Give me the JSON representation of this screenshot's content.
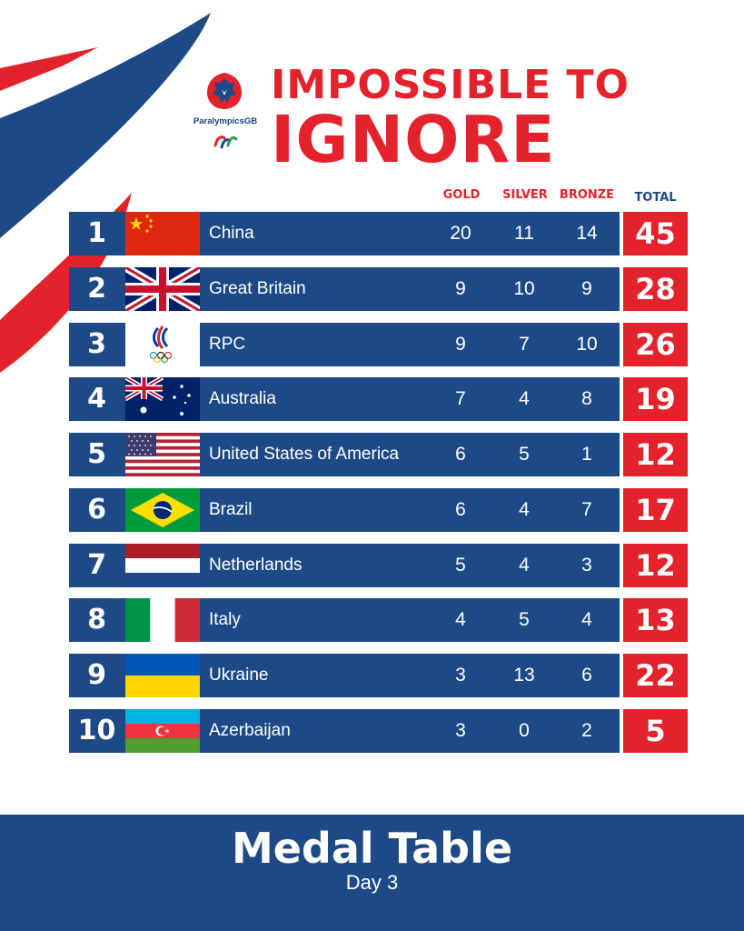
{
  "brand": {
    "logo_text_a": "Paralympics",
    "logo_text_b": "GB"
  },
  "headline": {
    "line1": "IMPOSSIBLE TO",
    "line2": "IGNORE"
  },
  "columns": {
    "gold": "GOLD",
    "silver": "SILVER",
    "bronze": "BRONZE",
    "total": "TOTAL"
  },
  "rows": [
    {
      "rank": "1",
      "country": "China",
      "flag": "china-flag-icon",
      "gold": "20",
      "silver": "11",
      "bronze": "14",
      "total": "45"
    },
    {
      "rank": "2",
      "country": "Great Britain",
      "flag": "great-britain-flag-icon",
      "gold": "9",
      "silver": "10",
      "bronze": "9",
      "total": "28"
    },
    {
      "rank": "3",
      "country": "RPC",
      "flag": "rpc-flag-icon",
      "gold": "9",
      "silver": "7",
      "bronze": "10",
      "total": "26"
    },
    {
      "rank": "4",
      "country": "Australia",
      "flag": "australia-flag-icon",
      "gold": "7",
      "silver": "4",
      "bronze": "8",
      "total": "19"
    },
    {
      "rank": "5",
      "country": "United States of America",
      "flag": "usa-flag-icon",
      "gold": "6",
      "silver": "5",
      "bronze": "1",
      "total": "12"
    },
    {
      "rank": "6",
      "country": "Brazil",
      "flag": "brazil-flag-icon",
      "gold": "6",
      "silver": "4",
      "bronze": "7",
      "total": "17"
    },
    {
      "rank": "7",
      "country": "Netherlands",
      "flag": "netherlands-flag-icon",
      "gold": "5",
      "silver": "4",
      "bronze": "3",
      "total": "12"
    },
    {
      "rank": "8",
      "country": "Italy",
      "flag": "italy-flag-icon",
      "gold": "4",
      "silver": "5",
      "bronze": "4",
      "total": "13"
    },
    {
      "rank": "9",
      "country": "Ukraine",
      "flag": "ukraine-flag-icon",
      "gold": "3",
      "silver": "13",
      "bronze": "6",
      "total": "22"
    },
    {
      "rank": "10",
      "country": "Azerbaijan",
      "flag": "azerbaijan-flag-icon",
      "gold": "3",
      "silver": "0",
      "bronze": "2",
      "total": "5"
    }
  ],
  "footer": {
    "title": "Medal Table",
    "subtitle": "Day 3"
  },
  "colors": {
    "navy": "#1d4a86",
    "red": "#e3222b",
    "white": "#ffffff"
  }
}
